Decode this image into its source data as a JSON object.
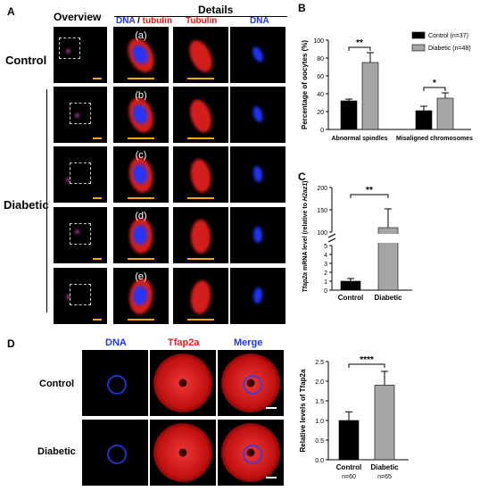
{
  "panelA": {
    "letter": "A",
    "overview_header": "Overview",
    "details_header": "Details",
    "col_dna": "DNA",
    "col_slash": " / ",
    "col_tubulin_lower": "tubulin",
    "col_tubulin": "Tubulin",
    "col_dna2": "DNA",
    "row_control": "Control",
    "row_diabetic": "Diabetic",
    "sub_labels": [
      "(a)",
      "(b)",
      "(c)",
      "(d)",
      "(e)"
    ],
    "colors": {
      "red": "#e0201e",
      "blue": "#1f36ff",
      "scalebar": "#f5a800"
    }
  },
  "panelD": {
    "letter": "D",
    "col_dna": "DNA",
    "col_tfap2a": "Tfap2a",
    "col_merge": "Merge",
    "row_control": "Control",
    "row_diabetic": "Diabetic"
  },
  "chart_data": [
    {
      "panel": "B",
      "type": "bar",
      "categories": [
        "Abnormal spindles",
        "Misaligned chromosomes"
      ],
      "series": [
        {
          "name": "Control (n=37)",
          "color": "#000000",
          "values": [
            32,
            21
          ],
          "errors": [
            2,
            5
          ]
        },
        {
          "name": "Diabetic (n=48)",
          "color": "#a6a6a6",
          "values": [
            75,
            35
          ],
          "errors": [
            11,
            6
          ]
        }
      ],
      "ylabel": "Percentage of oocytes (%)",
      "ylim": [
        0,
        100
      ],
      "yticks": [
        0,
        20,
        40,
        60,
        80,
        100
      ],
      "significance": [
        "**",
        "*"
      ],
      "legend": "top-right"
    },
    {
      "panel": "C",
      "type": "bar",
      "categories": [
        "Control",
        "Diabetic"
      ],
      "values": [
        1,
        110
      ],
      "errors": [
        0.3,
        42
      ],
      "colors": [
        "#000000",
        "#a6a6a6"
      ],
      "ylabel_parts": [
        "Tfap2a",
        " mRNA level (relative to ",
        "H2az1",
        ")"
      ],
      "yticks_upper": [
        100,
        150,
        200
      ],
      "yticks_lower": [
        0,
        1,
        2,
        3,
        4,
        5
      ],
      "axis_break": true,
      "significance": "**"
    },
    {
      "panel": "D",
      "type": "bar",
      "categories": [
        "Control",
        "Diabetic"
      ],
      "n_labels": [
        "n=60",
        "n=65"
      ],
      "values": [
        1.0,
        1.9
      ],
      "errors": [
        0.22,
        0.35
      ],
      "colors": [
        "#000000",
        "#a6a6a6"
      ],
      "ylabel": "Relative levels of Tfap2a",
      "ylim": [
        0,
        2.5
      ],
      "yticks": [
        "0.0",
        "0.5",
        "1.0",
        "1.5",
        "2.0",
        "2.5"
      ],
      "significance": "****"
    }
  ]
}
